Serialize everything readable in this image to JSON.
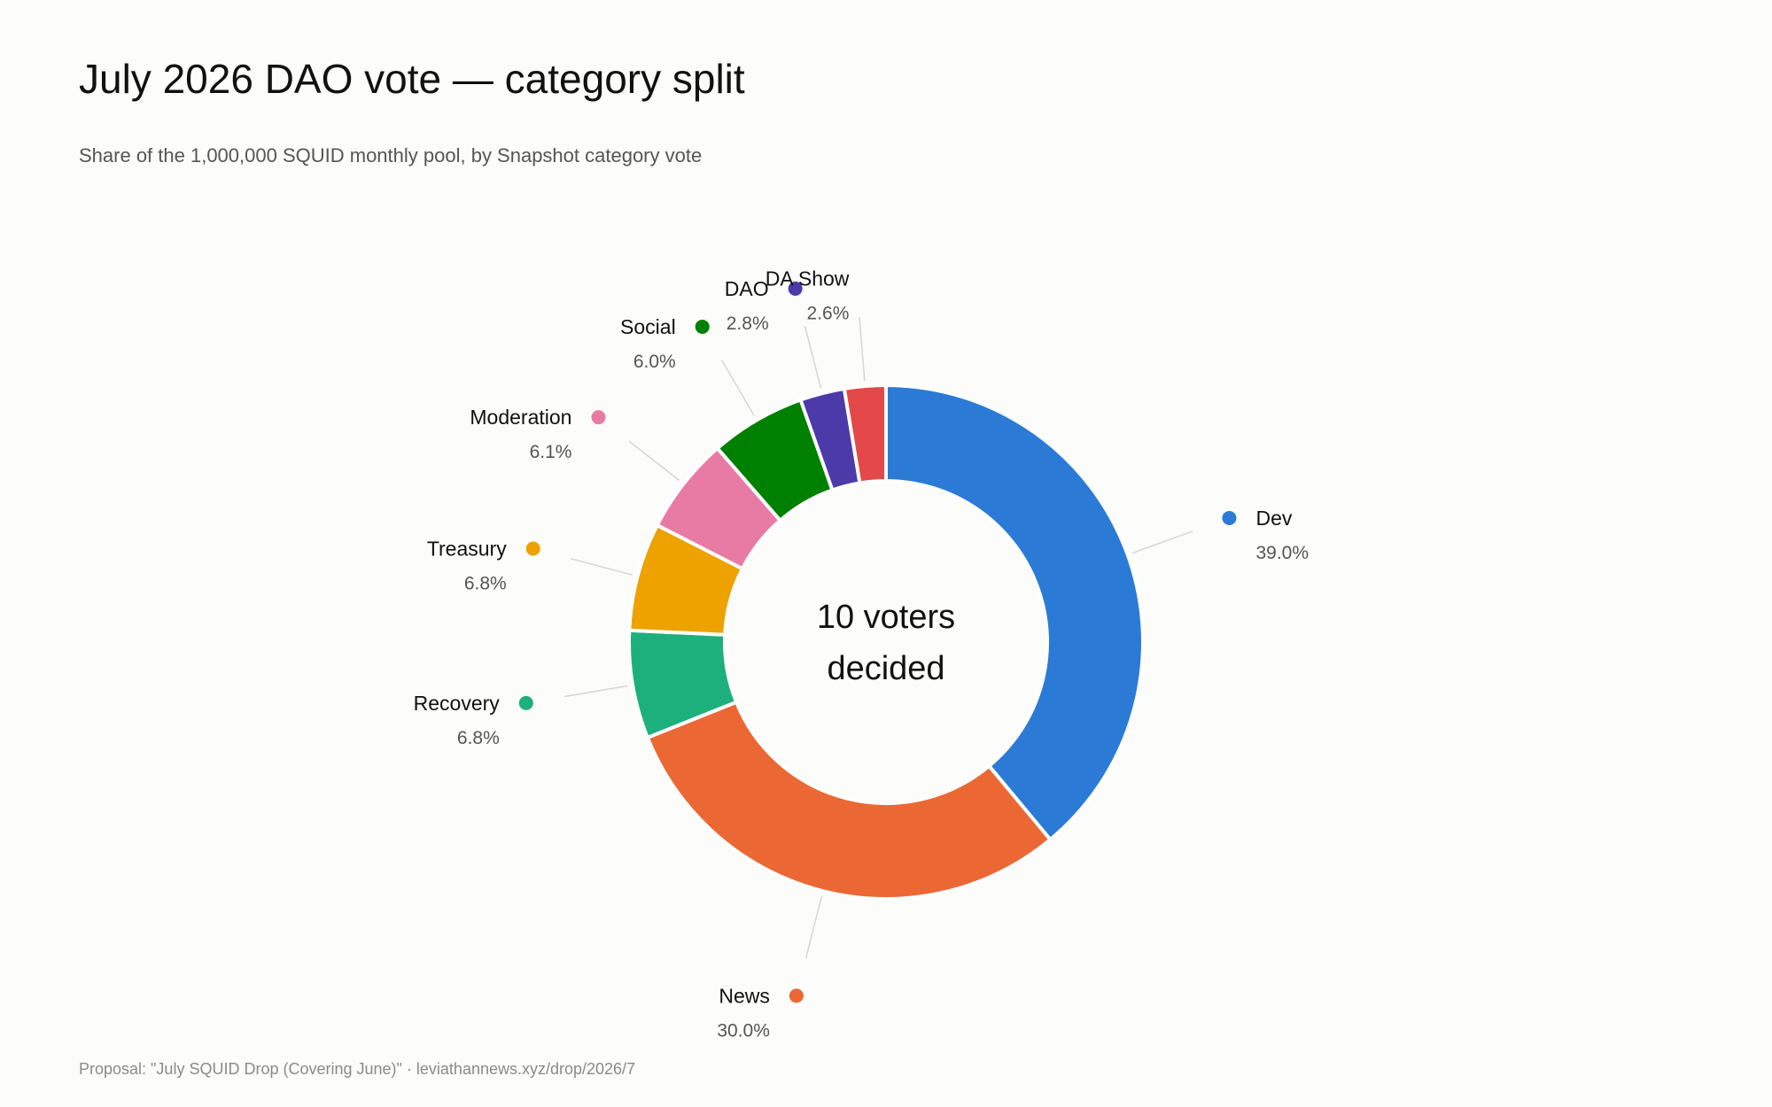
{
  "header": {
    "title": "July 2026 DAO vote — category split",
    "subtitle": "Share of the 1,000,000 SQUID monthly pool, by Snapshot category vote"
  },
  "footer": {
    "note": "Proposal: \"July SQUID Drop (Covering June)\" · leviathannews.xyz/drop/2026/7"
  },
  "chart_data": {
    "type": "pie",
    "variant": "donut",
    "title": "July 2026 DAO vote — category split",
    "subtitle": "Share of the 1,000,000 SQUID monthly pool, by Snapshot category vote",
    "center_label": [
      "10 voters",
      "decided"
    ],
    "unit": "%",
    "legend": "none",
    "slices": [
      {
        "label": "Dev",
        "value": 39.0,
        "display": "39.0%",
        "color": "#2b7bd6"
      },
      {
        "label": "News",
        "value": 30.0,
        "display": "30.0%",
        "color": "#eb6834"
      },
      {
        "label": "Recovery",
        "value": 6.8,
        "display": "6.8%",
        "color": "#1db07d"
      },
      {
        "label": "Treasury",
        "value": 6.8,
        "display": "6.8%",
        "color": "#eda200"
      },
      {
        "label": "Moderation",
        "value": 6.1,
        "display": "6.1%",
        "color": "#e87ba4"
      },
      {
        "label": "Social",
        "value": 6.0,
        "display": "6.0%",
        "color": "#008000"
      },
      {
        "label": "DAO",
        "value": 2.8,
        "display": "2.8%",
        "color": "#4c3aa9"
      },
      {
        "label": "DA Show",
        "value": 2.6,
        "display": "2.6%",
        "color": "#e54848"
      }
    ]
  }
}
